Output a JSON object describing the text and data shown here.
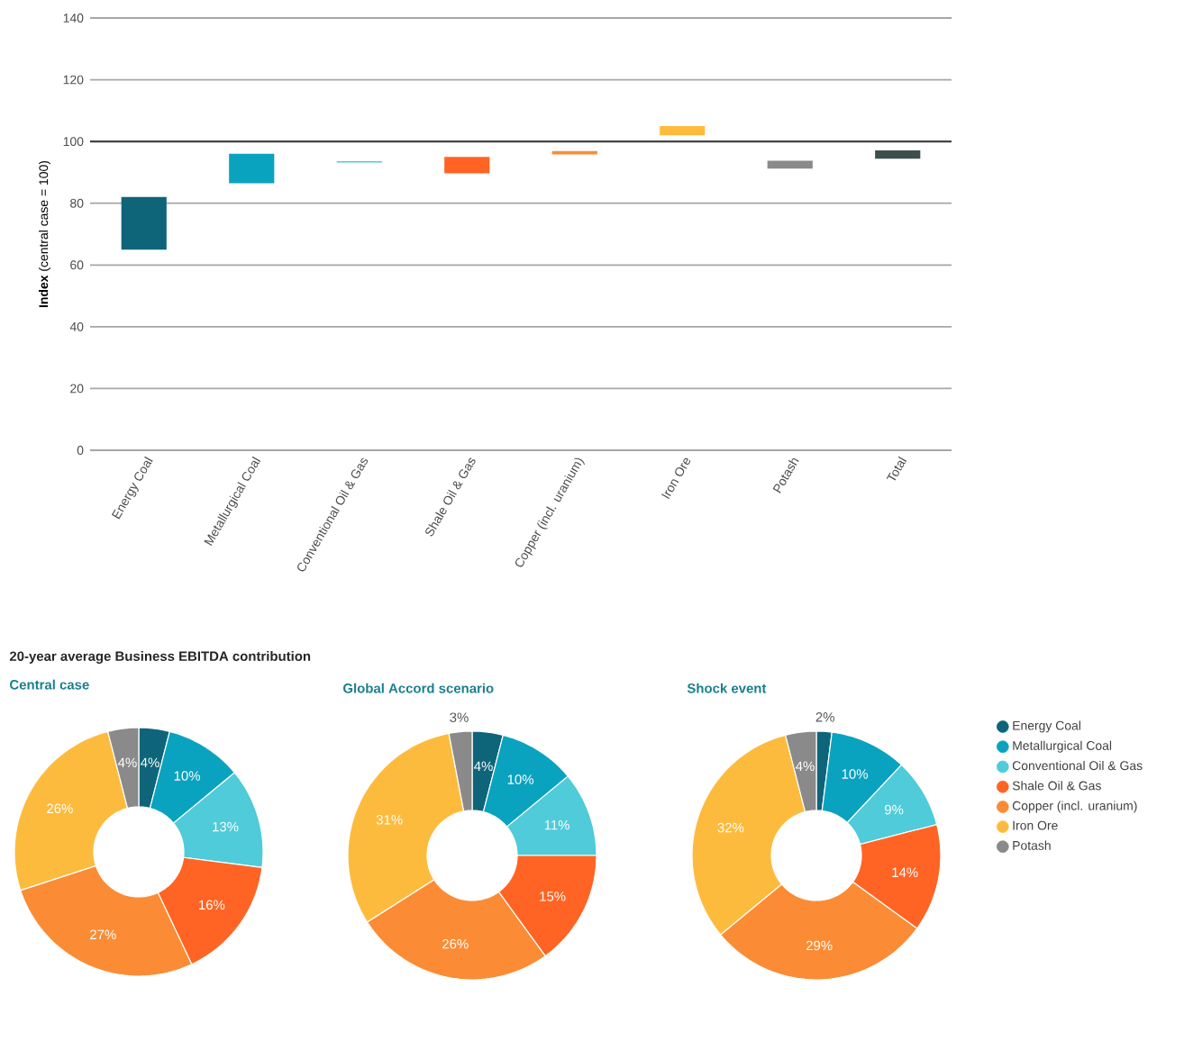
{
  "chart_data": [
    {
      "type": "bar",
      "ylabel": "**Index** (central case = 100)",
      "categories": [
        "Energy Coal",
        "Metallurgical Coal",
        "Conventional Oil & Gas",
        "Shale Oil & Gas",
        "Copper (incl. uranium)",
        "Iron Ore",
        "Potash",
        "Total"
      ],
      "base": [
        65,
        86.5,
        93.2,
        89.7,
        95.8,
        102,
        91.2,
        94.4
      ],
      "values": [
        17,
        9.5,
        0.4,
        5.3,
        1.1,
        3,
        2.6,
        2.7
      ],
      "colors": [
        "#0e6579",
        "#0aa3bf",
        "#4fcbd9",
        "#ff6424",
        "#fb8c35",
        "#fdbb3e",
        "#8a8a8a",
        "#3d4f4d"
      ],
      "ylim": [
        0,
        140
      ],
      "yticks": [
        0,
        20,
        40,
        60,
        80,
        100,
        120,
        140
      ],
      "grid": "y",
      "ref_lines": [
        {
          "axis": "y",
          "value": 100,
          "color": "#444444"
        }
      ]
    },
    {
      "type": "donut",
      "title": "Central case",
      "annotations": [
        "20-year average Business EBITDA contribution"
      ],
      "categories": [
        null,
        null,
        null,
        null,
        null,
        null,
        null
      ],
      "values": [
        4,
        10,
        13,
        16,
        27,
        26,
        4
      ],
      "value_labels": [
        "4%",
        "10%",
        "13%",
        "16%",
        "27%",
        "26%",
        "4%"
      ],
      "colors": [
        "#0e6579",
        "#0aa3bf",
        "#4fcbd9",
        "#ff6424",
        "#fb8c35",
        "#fdbb3e",
        "#8a8a8a"
      ]
    },
    {
      "type": "donut",
      "title": "Global Accord scenario",
      "categories": [
        null,
        null,
        null,
        null,
        null,
        null,
        null
      ],
      "values": [
        4,
        10,
        11,
        15,
        26,
        31,
        3
      ],
      "value_labels": [
        "4%",
        "10%",
        "11%",
        "15%",
        "26%",
        "31%",
        "3%"
      ],
      "colors": [
        "#0e6579",
        "#0aa3bf",
        "#4fcbd9",
        "#ff6424",
        "#fb8c35",
        "#fdbb3e",
        "#8a8a8a"
      ]
    },
    {
      "type": "donut",
      "title": "Shock event",
      "legend": "right",
      "categories": [
        "Energy Coal",
        "Metallurgical Coal",
        "Conventional Oil & Gas",
        "Shale Oil & Gas",
        "Copper (incl. uranium)",
        "Iron Ore",
        "Potash"
      ],
      "values": [
        2,
        10,
        9,
        14,
        29,
        32,
        4
      ],
      "value_labels": [
        "2%",
        "10%",
        "9%",
        "14%",
        "29%",
        "32%",
        "4%"
      ],
      "colors": [
        "#0e6579",
        "#0aa3bf",
        "#4fcbd9",
        "#ff6424",
        "#fb8c35",
        "#fdbb3e",
        "#8a8a8a"
      ]
    }
  ]
}
